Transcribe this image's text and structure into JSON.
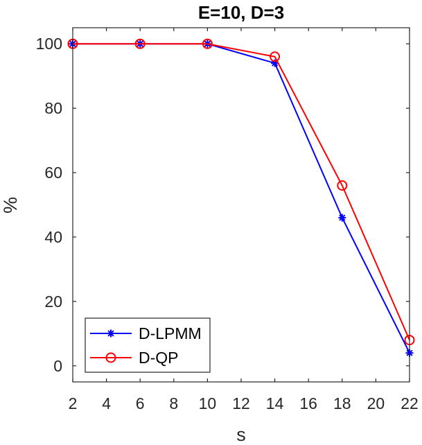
{
  "chart_data": {
    "type": "line",
    "title": "E=10, D=3",
    "xlabel": "s",
    "ylabel": "%",
    "xlim": [
      2,
      22
    ],
    "ylim": [
      -5,
      105
    ],
    "xticks": [
      2,
      4,
      6,
      8,
      10,
      12,
      14,
      16,
      18,
      20,
      22
    ],
    "yticks": [
      0,
      20,
      40,
      60,
      80,
      100
    ],
    "grid": false,
    "legend_position": "bottom-left",
    "series": [
      {
        "name": "D-LPMM",
        "color": "#0000ff",
        "marker": "asterisk",
        "x": [
          2,
          6,
          10,
          14,
          18,
          22
        ],
        "y": [
          100,
          100,
          100,
          94,
          46,
          4
        ]
      },
      {
        "name": "D-QP",
        "color": "#ff0000",
        "marker": "circle",
        "x": [
          2,
          6,
          10,
          14,
          18,
          22
        ],
        "y": [
          100,
          100,
          100,
          96,
          56,
          8
        ]
      }
    ]
  }
}
